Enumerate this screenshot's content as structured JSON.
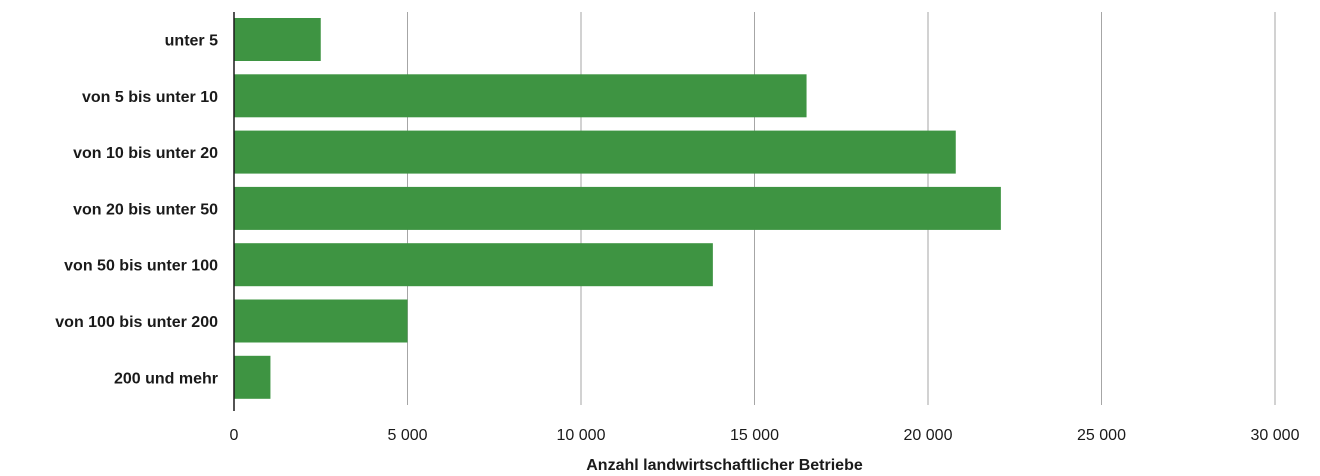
{
  "chart_data": {
    "type": "bar",
    "orientation": "horizontal",
    "categories": [
      "unter 5",
      "von 5 bis unter 10",
      "von 10 bis unter 20",
      "von 20 bis unter 50",
      "von 50 bis unter 100",
      "von 100 bis unter 200",
      "200 und mehr"
    ],
    "values": [
      2500,
      16500,
      20800,
      22100,
      13800,
      5000,
      1050
    ],
    "xlabel": "Anzahl landwirtschaftlicher Betriebe",
    "ylabel": "",
    "xlim": [
      0,
      30000
    ],
    "xticks": [
      0,
      5000,
      10000,
      15000,
      20000,
      25000,
      30000
    ],
    "xtick_labels": [
      "0",
      "5 000",
      "10 000",
      "15 000",
      "20 000",
      "25 000",
      "30 000"
    ],
    "grid": "vertical",
    "bar_color": "#3e9442",
    "grid_color": "#a6a6a6",
    "axis_color": "#1a1a1a"
  }
}
